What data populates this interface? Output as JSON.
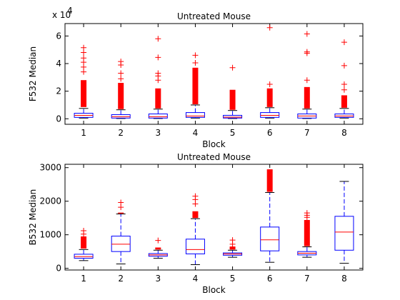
{
  "chart_data": [
    {
      "type": "box",
      "title": "Untreated Mouse",
      "xlabel": "Block",
      "ylabel": "F532 Median",
      "exponent_label": "x 10",
      "exponent_power": "4",
      "ylim": [
        -0.4,
        6.9
      ],
      "yticks": [
        0,
        2,
        4,
        6
      ],
      "categories": [
        "1",
        "2",
        "3",
        "4",
        "5",
        "6",
        "7",
        "8"
      ],
      "colors": {
        "box": "#0000ff",
        "median": "#ff0000",
        "outlier": "#ff0000"
      },
      "boxes": [
        {
          "lw": 0.05,
          "q1": 0.1,
          "median": 0.25,
          "q3": 0.4,
          "uw": 0.75,
          "dense_outliers": [
            0.85,
            2.8
          ],
          "outliers": [
            3.4,
            3.75,
            4.1,
            4.4,
            4.8,
            5.15
          ]
        },
        {
          "lw": 0.02,
          "q1": 0.05,
          "median": 0.15,
          "q3": 0.3,
          "uw": 0.65,
          "dense_outliers": [
            0.7,
            2.6
          ],
          "outliers": [
            2.9,
            3.3,
            3.9,
            4.15
          ]
        },
        {
          "lw": 0.02,
          "q1": 0.05,
          "median": 0.15,
          "q3": 0.35,
          "uw": 0.7,
          "dense_outliers": [
            0.75,
            2.2
          ],
          "outliers": [
            2.8,
            3.1,
            3.3,
            4.45,
            5.8
          ]
        },
        {
          "lw": 0.05,
          "q1": 0.1,
          "median": 0.2,
          "q3": 0.45,
          "uw": 1.0,
          "dense_outliers": [
            1.05,
            3.7
          ],
          "outliers": [
            4.05,
            4.6
          ]
        },
        {
          "lw": 0.02,
          "q1": 0.05,
          "median": 0.12,
          "q3": 0.25,
          "uw": 0.6,
          "dense_outliers": [
            0.65,
            2.1
          ],
          "outliers": [
            3.7
          ]
        },
        {
          "lw": 0.05,
          "q1": 0.1,
          "median": 0.25,
          "q3": 0.45,
          "uw": 0.8,
          "dense_outliers": [
            0.85,
            2.2
          ],
          "outliers": [
            2.5,
            6.6
          ]
        },
        {
          "lw": 0.02,
          "q1": 0.05,
          "median": 0.2,
          "q3": 0.35,
          "uw": 0.7,
          "dense_outliers": [
            0.75,
            2.3
          ],
          "outliers": [
            2.8,
            4.75,
            4.85,
            6.15
          ]
        },
        {
          "lw": 0.05,
          "q1": 0.1,
          "median": 0.2,
          "q3": 0.35,
          "uw": 0.75,
          "dense_outliers": [
            0.8,
            1.7
          ],
          "outliers": [
            2.1,
            2.5,
            3.85,
            5.55
          ]
        }
      ]
    },
    {
      "type": "box",
      "title": "Untreated Mouse",
      "xlabel": "Block",
      "ylabel": "B532 Median",
      "ylim": [
        -50,
        3100
      ],
      "yticks": [
        0,
        1000,
        2000,
        3000
      ],
      "categories": [
        "1",
        "2",
        "3",
        "4",
        "5",
        "6",
        "7",
        "8"
      ],
      "colors": {
        "box": "#0000ff",
        "median": "#ff0000",
        "outlier": "#ff0000"
      },
      "boxes": [
        {
          "lw": 230,
          "q1": 300,
          "median": 350,
          "q3": 420,
          "uw": 560,
          "dense_outliers": [
            590,
            950
          ],
          "outliers": [
            1020,
            1120
          ]
        },
        {
          "lw": 130,
          "q1": 500,
          "median": 720,
          "q3": 960,
          "uw": 1620,
          "dense_outliers": [
            1630,
            1660
          ],
          "outliers": [
            1820,
            1960
          ]
        },
        {
          "lw": 300,
          "q1": 360,
          "median": 400,
          "q3": 440,
          "uw": 540,
          "dense_outliers": [
            560,
            620
          ],
          "outliers": [
            830
          ]
        },
        {
          "lw": 110,
          "q1": 430,
          "median": 560,
          "q3": 870,
          "uw": 1480,
          "dense_outliers": [
            1500,
            1700
          ],
          "outliers": [
            1920,
            2050,
            2150
          ]
        },
        {
          "lw": 330,
          "q1": 390,
          "median": 430,
          "q3": 460,
          "uw": 540,
          "dense_outliers": [
            560,
            650
          ],
          "outliers": [
            720,
            840
          ]
        },
        {
          "lw": 180,
          "q1": 520,
          "median": 850,
          "q3": 1230,
          "uw": 2260,
          "dense_outliers": [
            2280,
            2950
          ],
          "outliers": []
        },
        {
          "lw": 330,
          "q1": 400,
          "median": 450,
          "q3": 500,
          "uw": 640,
          "dense_outliers": [
            660,
            1440
          ],
          "outliers": [
            1520,
            1580,
            1650
          ]
        },
        {
          "lw": 150,
          "q1": 540,
          "median": 1080,
          "q3": 1550,
          "uw": 2590,
          "dense_outliers": [],
          "outliers": []
        }
      ]
    }
  ]
}
